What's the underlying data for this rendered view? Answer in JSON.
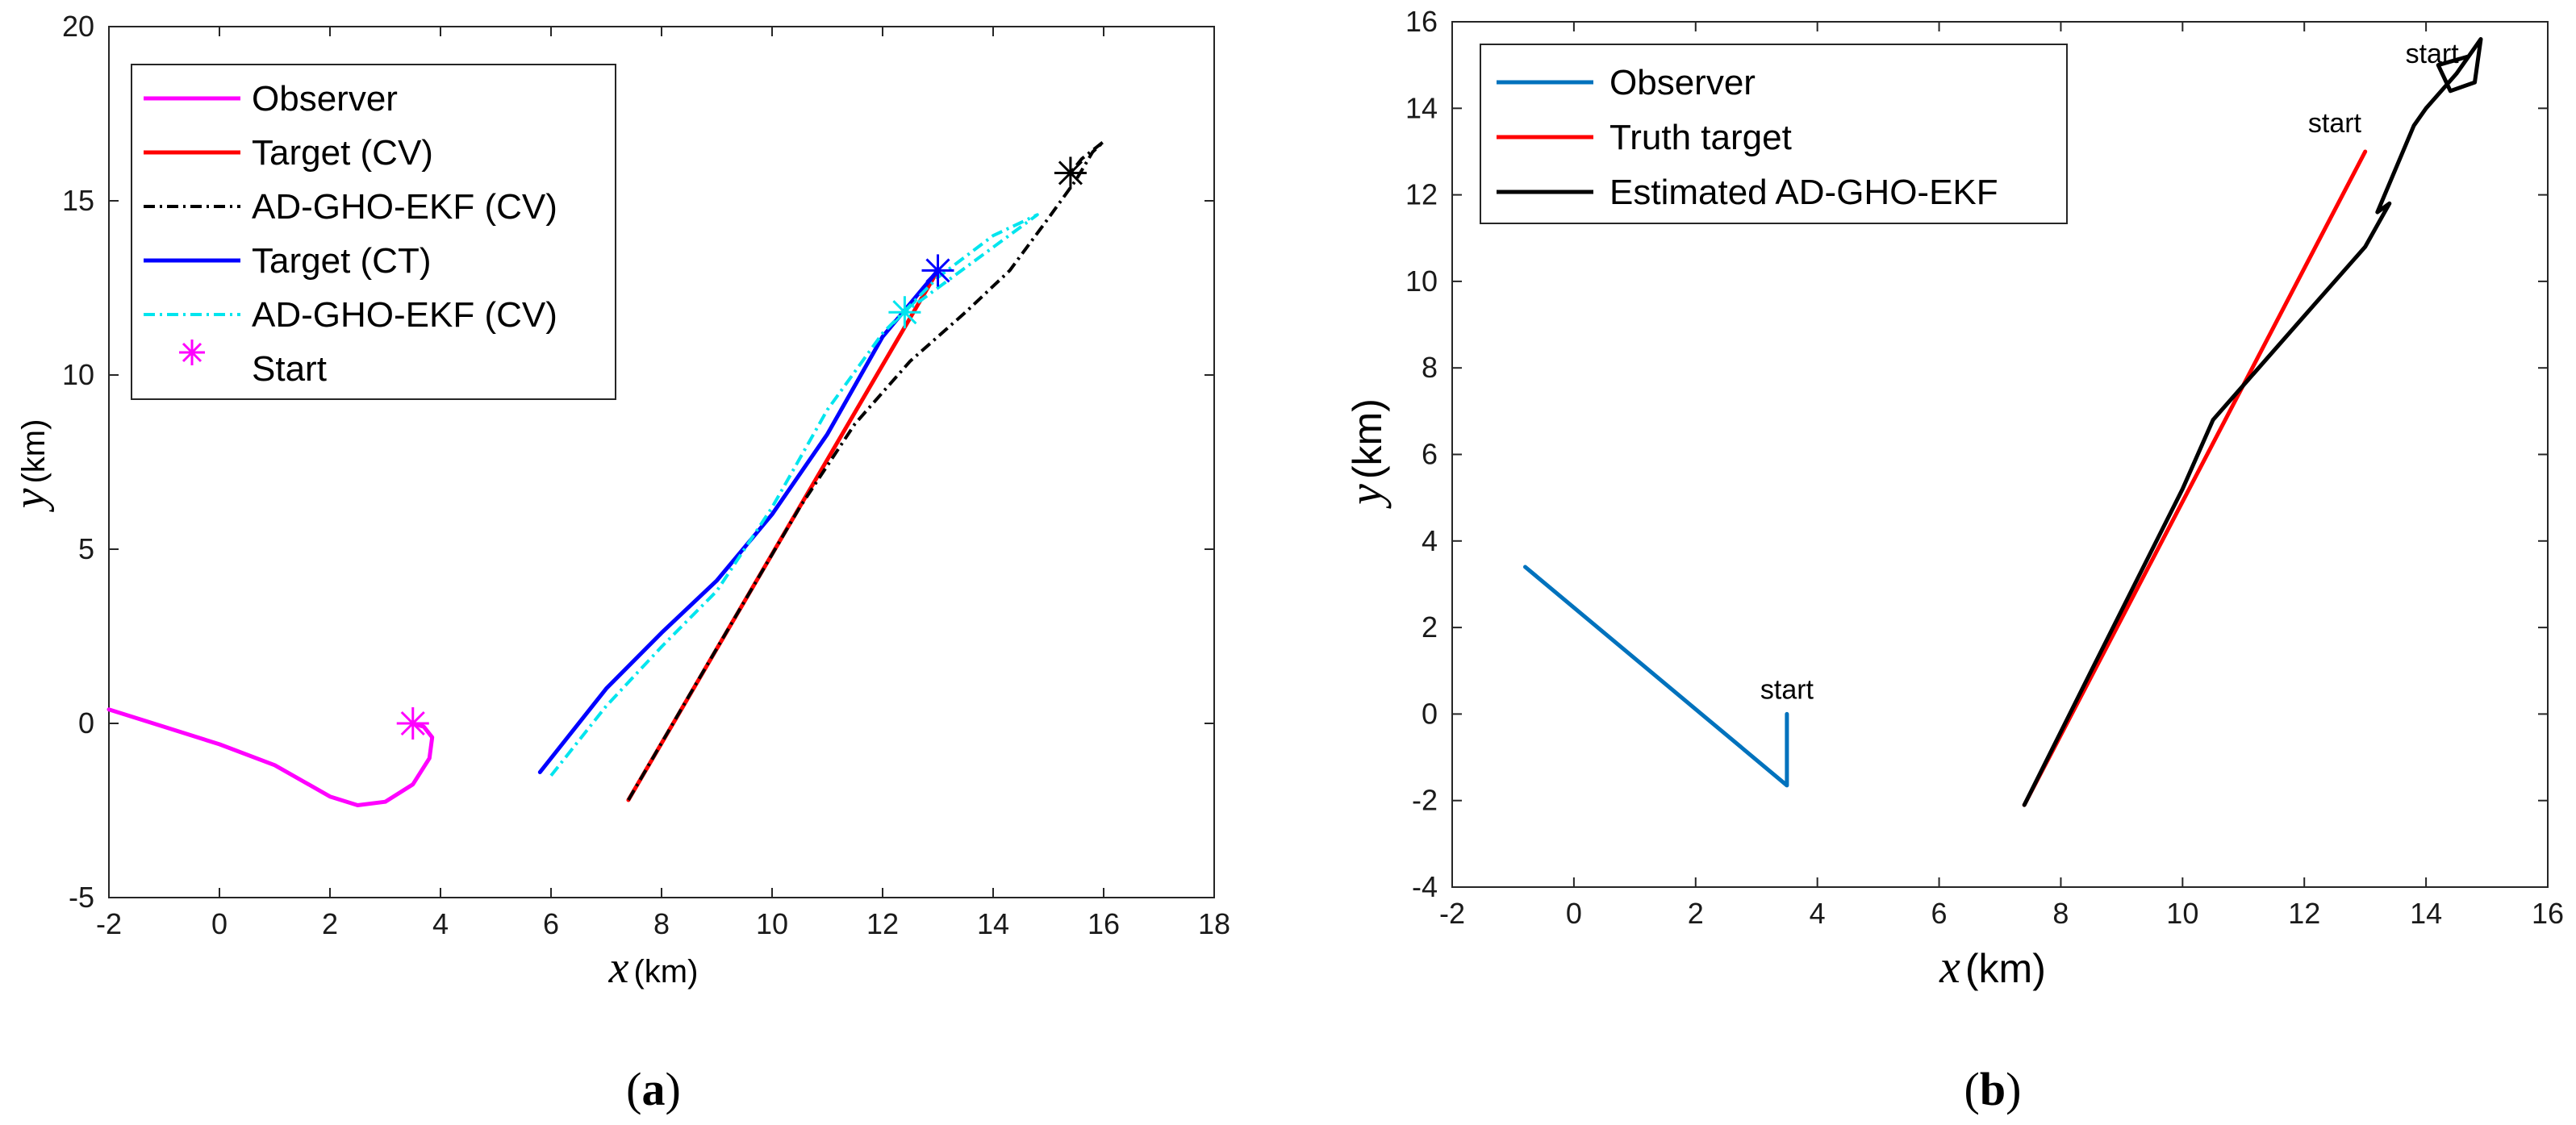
{
  "chart_data": [
    {
      "type": "line",
      "panel_label": "a",
      "title": "",
      "xlabel_var": "x",
      "xlabel_unit": "(km)",
      "ylabel_var": "y",
      "ylabel_unit": "(km)",
      "xlim": [
        -2,
        18
      ],
      "ylim": [
        -5,
        20
      ],
      "xticks": [
        -2,
        0,
        2,
        4,
        6,
        8,
        10,
        12,
        14,
        16,
        18
      ],
      "yticks": [
        -5,
        0,
        5,
        10,
        15,
        20
      ],
      "xtick_labels": [
        "-2",
        "0",
        "2",
        "4",
        "6",
        "8",
        "10",
        "12",
        "14",
        "16",
        "18"
      ],
      "ytick_labels": [
        "-5",
        "0",
        "5",
        "10",
        "15",
        "20"
      ],
      "legend_position": "top-left",
      "series": [
        {
          "name": "Observer",
          "color": "#ff00ff",
          "style": "solid",
          "x": [
            -2,
            -1,
            0,
            1,
            2,
            2.5,
            3,
            3.5,
            3.8,
            3.85,
            3.7,
            3.5
          ],
          "y": [
            0.4,
            -0.1,
            -0.6,
            -1.2,
            -2.1,
            -2.35,
            -2.25,
            -1.75,
            -1.0,
            -0.4,
            -0.1,
            0
          ]
        },
        {
          "name": "Target (CV)",
          "color": "#ff0000",
          "style": "solid",
          "x": [
            7.4,
            13.0
          ],
          "y": [
            -2.2,
            13.0
          ]
        },
        {
          "name": "AD-GHO-EKF (CV)",
          "color": "#000000",
          "style": "dashdot",
          "x": [
            7.4,
            8.5,
            9.5,
            10.5,
            11.5,
            12.5,
            13.5,
            14.3,
            15.0,
            15.5,
            15.8,
            16.0,
            15.6,
            15.4
          ],
          "y": [
            -2.2,
            0.8,
            3.5,
            6.2,
            8.6,
            10.4,
            11.8,
            13.0,
            14.5,
            15.6,
            16.4,
            16.7,
            16.2,
            15.8
          ]
        },
        {
          "name": "Target (CT)",
          "color": "#0000ff",
          "style": "solid",
          "x": [
            5.8,
            7.0,
            8.0,
            9.0,
            10.0,
            11.0,
            12.0,
            13.0
          ],
          "y": [
            -1.4,
            1.0,
            2.6,
            4.1,
            6.0,
            8.3,
            11.1,
            13.0
          ]
        },
        {
          "name": "AD-GHO-EKF (CV)",
          "color": "#00e5ee",
          "style": "dashdot",
          "x": [
            6.0,
            7.0,
            8.0,
            9.0,
            10.0,
            11.0,
            12.0,
            13.0,
            14.0,
            14.8,
            12.4
          ],
          "y": [
            -1.5,
            0.5,
            2.2,
            3.8,
            6.2,
            9.0,
            11.2,
            12.8,
            14.0,
            14.6,
            11.8
          ]
        },
        {
          "name": "Start",
          "color": "#ff00ff",
          "style": "marker",
          "x": [
            3.5
          ],
          "y": [
            0
          ]
        }
      ],
      "start_markers": [
        {
          "x": 3.5,
          "y": 0,
          "color": "#ff00ff"
        },
        {
          "x": 13.0,
          "y": 13.0,
          "color": "#0000ff"
        },
        {
          "x": 12.4,
          "y": 11.8,
          "color": "#00e5ee"
        },
        {
          "x": 15.4,
          "y": 15.8,
          "color": "#000000"
        }
      ]
    },
    {
      "type": "line",
      "panel_label": "b",
      "title": "",
      "xlabel_var": "x",
      "xlabel_unit": "(km)",
      "ylabel_var": "y",
      "ylabel_unit": "(km)",
      "xlim": [
        -2,
        16
      ],
      "ylim": [
        -4,
        16
      ],
      "xticks": [
        -2,
        0,
        2,
        4,
        6,
        8,
        10,
        12,
        14,
        16
      ],
      "yticks": [
        -4,
        -2,
        0,
        2,
        4,
        6,
        8,
        10,
        12,
        14,
        16
      ],
      "xtick_labels": [
        "-2",
        "0",
        "2",
        "4",
        "6",
        "8",
        "10",
        "12",
        "14",
        "16"
      ],
      "ytick_labels": [
        "-4",
        "-2",
        "0",
        "2",
        "4",
        "6",
        "8",
        "10",
        "12",
        "14",
        "16"
      ],
      "legend_position": "top-left",
      "series": [
        {
          "name": "Observer",
          "color": "#0072bd",
          "style": "solid",
          "x": [
            -0.8,
            3.5,
            3.5
          ],
          "y": [
            3.4,
            -1.65,
            0
          ]
        },
        {
          "name": "Truth target",
          "color": "#ff0000",
          "style": "solid",
          "x": [
            7.4,
            13.0
          ],
          "y": [
            -2.1,
            13.0
          ]
        },
        {
          "name": "Estimated AD-GHO-EKF",
          "color": "#000000",
          "style": "solid",
          "x": [
            7.4,
            8.5,
            9.5,
            10.0,
            10.5,
            11.0,
            12.0,
            13.0,
            13.4,
            13.2,
            13.8,
            14.0,
            14.5,
            14.9,
            14.8,
            14.4,
            14.2,
            14.7
          ],
          "y": [
            -2.1,
            1.0,
            3.8,
            5.2,
            6.8,
            7.6,
            9.2,
            10.8,
            11.8,
            11.6,
            13.6,
            14.0,
            14.8,
            15.6,
            14.6,
            14.4,
            15.0,
            15.2
          ]
        }
      ],
      "annotations": [
        {
          "text": "start",
          "x": 3.5,
          "y": 0.2
        },
        {
          "text": "start",
          "x": 12.5,
          "y": 13.3
        },
        {
          "text": "start",
          "x": 14.1,
          "y": 14.9
        }
      ]
    }
  ]
}
